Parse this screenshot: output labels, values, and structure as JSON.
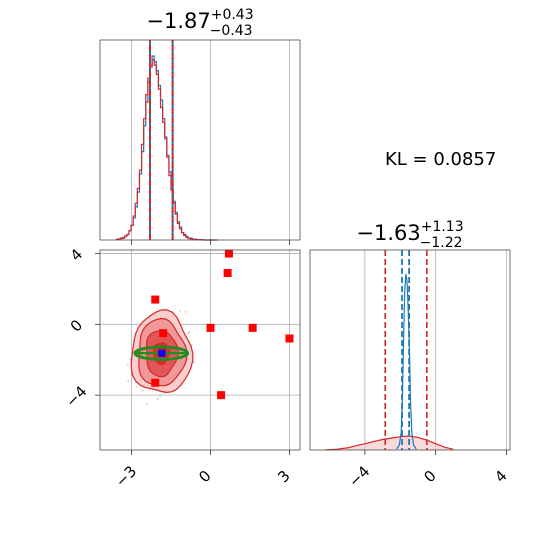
{
  "chart_data": [
    {
      "type": "histogram",
      "panel": "top-left",
      "title_main": "−1.87",
      "title_sup": "+0.43",
      "title_sub": "−0.43",
      "xlim": [
        -4.2,
        3.4
      ],
      "xticks": [
        -3,
        0,
        3
      ],
      "grid": true,
      "colors": {
        "blue": "#1f77b4",
        "red": "#d62728"
      },
      "quantiles": {
        "red": [
          -2.3,
          -1.44
        ],
        "blue": [
          -2.3,
          -1.44
        ]
      },
      "bin_edges": [
        -3.58,
        -3.5,
        -3.42,
        -3.34,
        -3.26,
        -3.18,
        -3.1,
        -3.02,
        -2.94,
        -2.86,
        -2.78,
        -2.7,
        -2.62,
        -2.54,
        -2.46,
        -2.38,
        -2.3,
        -2.22,
        -2.14,
        -2.06,
        -1.98,
        -1.9,
        -1.82,
        -1.74,
        -1.66,
        -1.58,
        -1.5,
        -1.42,
        -1.34,
        -1.26,
        -1.18,
        -1.1,
        -1.02,
        -0.94,
        -0.86,
        -0.78,
        -0.7,
        -0.62,
        -0.54,
        -0.46,
        -0.38,
        -0.3,
        -0.22,
        -0.14,
        -0.06,
        0.02,
        0.1,
        0.18,
        0.26
      ],
      "series": [
        {
          "color": "#1f77b4",
          "values": [
            0.3,
            0.6,
            1,
            1,
            2,
            3,
            5,
            8,
            12,
            18,
            26,
            36,
            48,
            62,
            75,
            86,
            94,
            100,
            97,
            92,
            84,
            76,
            66,
            56,
            46,
            37,
            28,
            21,
            15,
            10,
            7,
            4,
            3,
            2,
            1,
            1,
            0.5,
            0.5,
            0.3,
            0.2,
            0.2,
            0.1,
            0,
            0,
            0.1,
            0,
            0,
            0
          ]
        },
        {
          "color": "#d62728",
          "values": [
            0.3,
            0.5,
            0.8,
            1.3,
            2.2,
            3,
            5,
            8,
            13,
            20,
            28,
            38,
            52,
            66,
            79,
            88,
            95,
            98,
            95,
            90,
            82,
            72,
            64,
            55,
            45,
            35,
            27,
            20,
            14,
            9,
            6,
            4,
            2.5,
            1.5,
            1,
            0.6,
            0.4,
            0.3,
            0.2,
            0.1,
            0.1,
            0,
            0,
            0,
            0,
            0,
            0,
            0
          ]
        }
      ]
    },
    {
      "type": "scatter",
      "panel": "bottom-left",
      "xlim": [
        -4.2,
        3.4
      ],
      "ylim": [
        -7.1,
        4.2
      ],
      "xticks": [
        -3,
        0,
        3
      ],
      "yticks": [
        -4,
        0,
        4
      ],
      "grid": true,
      "colors": {
        "red": "#ff0000",
        "contour": "#d62728",
        "green": "#228b22",
        "blue": "#0000ff"
      },
      "red_markers": [
        {
          "x": 0.7,
          "y": 4.0
        },
        {
          "x": 0.65,
          "y": 2.9
        },
        {
          "x": -2.1,
          "y": 1.4
        },
        {
          "x": -1.8,
          "y": -0.5
        },
        {
          "x": 0.0,
          "y": -0.2
        },
        {
          "x": 1.6,
          "y": -0.2
        },
        {
          "x": 3.0,
          "y": -0.8
        },
        {
          "x": -2.1,
          "y": -3.3
        },
        {
          "x": 0.4,
          "y": -4.0
        },
        {
          "x": -1.85,
          "y": -1.6
        }
      ],
      "contour_levels": [
        {
          "rx": 1.15,
          "ry": 2.3,
          "fill": "#f7c6c7"
        },
        {
          "rx": 0.9,
          "ry": 1.9,
          "fill": "#ee8f90"
        },
        {
          "rx": 0.6,
          "ry": 1.3,
          "fill": "#e04a4b"
        },
        {
          "rx": 0.3,
          "ry": 0.6,
          "fill": "#d62728"
        }
      ],
      "contour_center": {
        "x": -1.87,
        "y": -1.63
      },
      "green_ellipse": {
        "cx": -1.87,
        "cy": -1.63,
        "rx": 1.0,
        "ry": 0.35
      },
      "blue_marker": {
        "x": -1.85,
        "y": -1.63
      }
    },
    {
      "type": "histogram",
      "panel": "bottom-right",
      "title_main": "−1.63",
      "title_sup": "+1.13",
      "title_sub": "−1.22",
      "xlim": [
        -7.1,
        4.2
      ],
      "xticks": [
        -4,
        0,
        4
      ],
      "grid": true,
      "colors": {
        "blue": "#1f77b4",
        "red": "#d62728"
      },
      "quantiles": {
        "red": [
          -2.85,
          -0.5
        ],
        "blue": [
          -1.9,
          -1.5
        ]
      },
      "red_curve": {
        "x": [
          -6.2,
          -5.6,
          -5.0,
          -4.5,
          -4.0,
          -3.5,
          -3.0,
          -2.5,
          -2.0,
          -1.5,
          -1.0,
          -0.5,
          0.0,
          0.5,
          1.0
        ],
        "y": [
          0.2,
          1,
          3,
          6,
          9,
          12,
          15,
          17,
          19,
          20,
          18,
          14,
          9,
          4,
          1
        ]
      },
      "blue_spike": {
        "x": [
          -2.2,
          -2.05,
          -1.95,
          -1.88,
          -1.82,
          -1.75,
          -1.68,
          -1.62,
          -1.55,
          -1.48,
          -1.42,
          -1.35,
          -1.25,
          -1.1
        ],
        "y": [
          0.5,
          3,
          10,
          30,
          60,
          90,
          100,
          96,
          80,
          55,
          28,
          10,
          3,
          0.5
        ]
      }
    }
  ],
  "kl_label": "KL = 0.0857"
}
